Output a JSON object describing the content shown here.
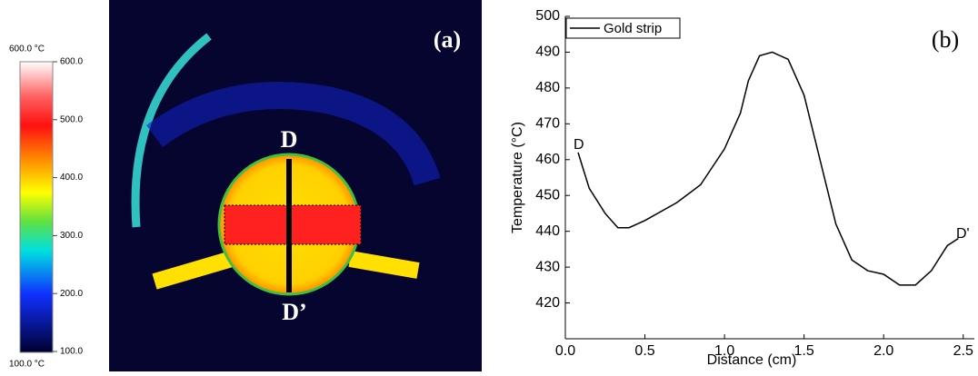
{
  "chart_data": [
    {
      "type": "thermal",
      "panel_label": "(a)",
      "annotations": [
        "D",
        "D’"
      ],
      "colorbar": {
        "max_label": "600.0 °C",
        "min_label": "100.0 °C",
        "lim": [
          100,
          600
        ],
        "ticks": [
          {
            "value": 600,
            "label": "600.0"
          },
          {
            "value": 500,
            "label": "500.0"
          },
          {
            "value": 400,
            "label": "400.0"
          },
          {
            "value": 300,
            "label": "300.0"
          },
          {
            "value": 200,
            "label": "200.0"
          },
          {
            "value": 100,
            "label": "100.0"
          }
        ]
      }
    },
    {
      "type": "line",
      "panel_label": "(b)",
      "xlabel": "Distance (cm)",
      "ylabel": "Temperature (°C)",
      "annotations": [
        "D",
        "D'"
      ],
      "x": [
        0.08,
        0.15,
        0.25,
        0.33,
        0.4,
        0.5,
        0.7,
        0.85,
        1.0,
        1.1,
        1.15,
        1.22,
        1.3,
        1.4,
        1.5,
        1.6,
        1.7,
        1.8,
        1.9,
        2.0,
        2.1,
        2.2,
        2.3,
        2.4,
        2.47
      ],
      "series": [
        {
          "name": "Gold strip",
          "color": "#000000",
          "values": [
            462,
            452,
            445,
            441,
            441,
            443,
            448,
            453,
            463,
            473,
            482,
            489,
            490,
            488,
            478,
            460,
            442,
            432,
            429,
            428,
            425,
            425,
            429,
            436,
            438
          ]
        }
      ],
      "xlim": [
        0,
        2.57
      ],
      "ylim": [
        410,
        500
      ],
      "xticks": [
        {
          "value": 0,
          "label": "0.0"
        },
        0.5,
        {
          "value": 1,
          "label": "1.0"
        },
        1.5,
        {
          "value": 2,
          "label": "2.0"
        },
        2.5
      ],
      "yticks": [
        420,
        430,
        440,
        450,
        460,
        470,
        480,
        490,
        500
      ]
    }
  ]
}
